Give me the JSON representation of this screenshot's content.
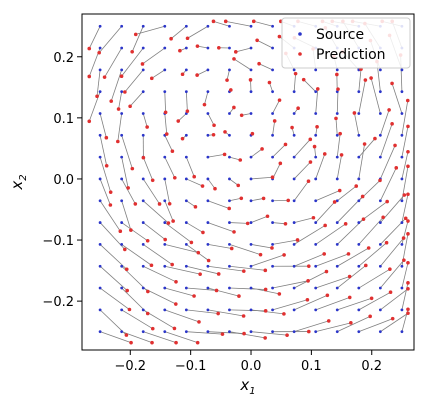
{
  "chart_data": {
    "type": "scatter",
    "xlabel": "x",
    "xlabel_sub": "1",
    "ylabel": "x",
    "ylabel_sub": "2",
    "xlim": [
      -0.28,
      0.27
    ],
    "ylim": [
      -0.28,
      0.27
    ],
    "x_ticks": [
      -0.2,
      -0.1,
      0.0,
      0.1,
      0.2
    ],
    "x_tick_labels": [
      "−0.2",
      "−0.1",
      "0.0",
      "0.1",
      "0.2"
    ],
    "y_ticks": [
      -0.2,
      -0.1,
      0.0,
      0.1,
      0.2
    ],
    "y_tick_labels": [
      "−0.2",
      "−0.1",
      "0.0",
      "0.1",
      "0.2"
    ],
    "grid": false,
    "legend": {
      "placement": "top-right",
      "entries": [
        {
          "name": "Source",
          "color": "#2b35c9"
        },
        {
          "name": "Prediction",
          "color": "#e03030"
        }
      ]
    },
    "connector_color": "#808080",
    "grid_spec": {
      "count_per_axis": 15,
      "min": -0.25,
      "max": 0.25
    },
    "flow_field": {
      "center": [
        -0.07,
        0.05
      ],
      "rotation_strength": 1.2,
      "drift": [
        0.01,
        -0.01
      ],
      "max_offset": 0.06
    }
  }
}
